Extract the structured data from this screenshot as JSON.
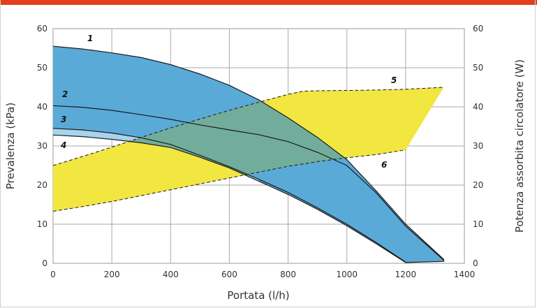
{
  "chart_data": {
    "type": "line",
    "title": "",
    "xlabel": "Portata (l/h)",
    "ylabel": "Prevalenza (kPa)",
    "y2label": "Potenza assorbita circolatore (W)",
    "xlim": [
      0,
      1400
    ],
    "ylim": [
      0,
      60
    ],
    "y2lim": [
      0,
      60
    ],
    "grid": true,
    "x_ticks": [
      "0",
      "200",
      "400",
      "600",
      "800",
      "1000",
      "1200",
      "1400"
    ],
    "y_ticks": [
      "0",
      "10",
      "20",
      "30",
      "40",
      "50",
      "60"
    ],
    "y2_ticks": [
      "0",
      "10",
      "20",
      "30",
      "40",
      "50",
      "60"
    ],
    "colors": {
      "head_band": "#5aaad8",
      "power_band": "#f2e640",
      "overlap": "#72ad9c",
      "light_band": "#a8d3ec",
      "accent": "#e2401c"
    },
    "series": [
      {
        "name": "1",
        "axis": "left",
        "x": [
          0,
          100,
          200,
          300,
          400,
          500,
          600,
          700,
          800,
          900,
          1000,
          1100,
          1200,
          1330
        ],
        "y": [
          55.5,
          54.8,
          53.8,
          52.6,
          50.8,
          48.4,
          45.5,
          41.8,
          37.2,
          32.2,
          26.5,
          18.5,
          10.0,
          1.0
        ]
      },
      {
        "name": "2",
        "axis": "left",
        "x": [
          0,
          100,
          200,
          300,
          400,
          500,
          600,
          700,
          800,
          900,
          1000,
          1100,
          1200,
          1330
        ],
        "y": [
          40.3,
          39.9,
          39.1,
          38.0,
          36.8,
          35.4,
          34.1,
          32.9,
          31.1,
          28.4,
          25.0,
          18.0,
          9.5,
          0.8
        ]
      },
      {
        "name": "3",
        "axis": "left",
        "x": [
          0,
          100,
          200,
          300,
          400,
          500,
          600,
          700,
          800,
          900,
          1000,
          1100,
          1200
        ],
        "y": [
          34.5,
          34.1,
          33.3,
          32.1,
          30.4,
          27.6,
          24.7,
          21.5,
          18.1,
          14.2,
          10.0,
          5.3,
          0.3
        ]
      },
      {
        "name": "4",
        "axis": "left",
        "x": [
          0,
          100,
          200,
          300,
          400,
          500,
          600,
          700,
          800,
          900,
          1000,
          1100,
          1200
        ],
        "y": [
          32.8,
          32.4,
          31.7,
          30.8,
          29.6,
          27.1,
          24.4,
          21.0,
          17.6,
          13.8,
          9.6,
          5.0,
          0.2
        ]
      },
      {
        "name": "5",
        "axis": "right",
        "x": [
          0,
          100,
          200,
          300,
          400,
          500,
          600,
          700,
          800,
          850,
          900,
          1000,
          1100,
          1200,
          1330
        ],
        "y": [
          25.0,
          27.3,
          29.7,
          32.2,
          34.6,
          36.9,
          39.1,
          41.2,
          43.2,
          44.0,
          44.1,
          44.2,
          44.3,
          44.5,
          45.0
        ]
      },
      {
        "name": "6",
        "axis": "right",
        "x": [
          0,
          100,
          200,
          300,
          400,
          500,
          600,
          700,
          800,
          900,
          1000,
          1100,
          1200
        ],
        "y": [
          13.3,
          14.5,
          15.8,
          17.3,
          18.8,
          20.3,
          21.8,
          23.3,
          24.8,
          26.0,
          27.0,
          27.8,
          29.0
        ]
      }
    ],
    "power_band_right_edge": {
      "x": [
        1200,
        1330
      ],
      "y": [
        29.0,
        45.0
      ]
    }
  }
}
